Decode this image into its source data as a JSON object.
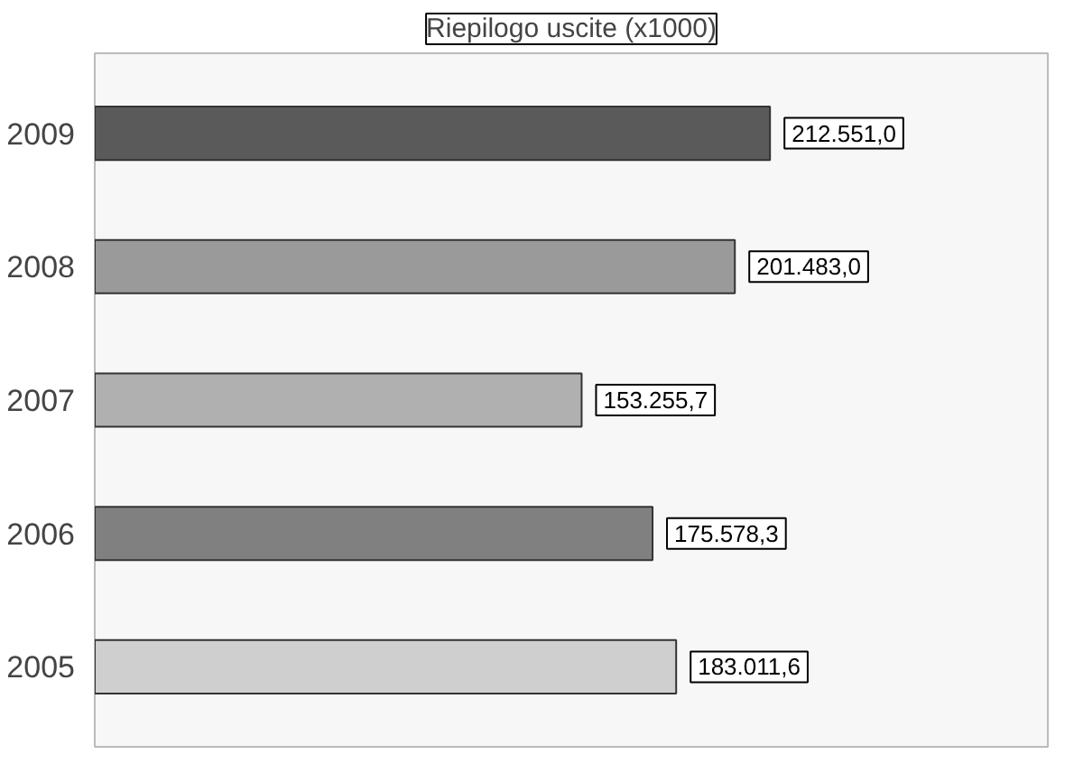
{
  "chart_data": {
    "type": "bar",
    "orientation": "horizontal",
    "title": "Riepilogo uscite (x1000)",
    "categories": [
      "2009",
      "2008",
      "2007",
      "2006",
      "2005"
    ],
    "values": [
      212551.0,
      201483.0,
      153255.7,
      175578.3,
      183011.6
    ],
    "value_labels": [
      "212.551,0",
      "201.483,0",
      "153.255,7",
      "175.578,3",
      "183.011,6"
    ],
    "colors": [
      "#5a5a5a",
      "#9a9a9a",
      "#b0b0b0",
      "#808080",
      "#cfcfcf"
    ],
    "xlim": [
      0,
      300000
    ],
    "grid": false
  }
}
